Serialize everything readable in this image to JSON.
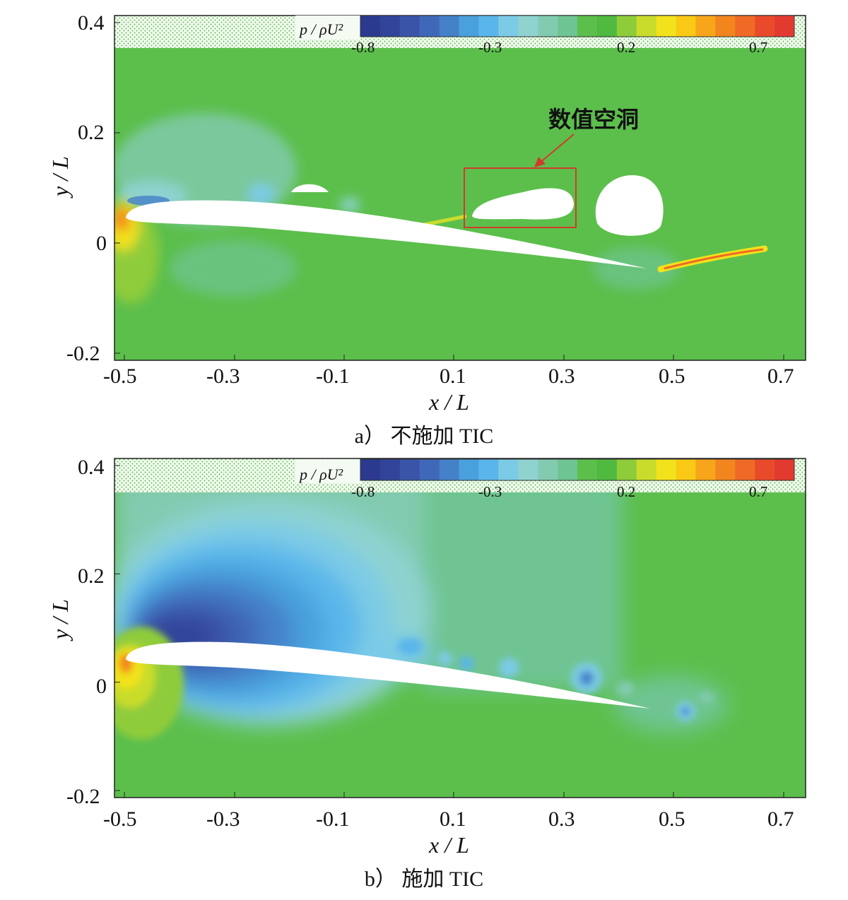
{
  "colors": {
    "background_green": "#5cbf4c",
    "body_white": "#ffffff",
    "colormap": [
      "#2b3a8f",
      "#32449a",
      "#3a55a8",
      "#3f68b8",
      "#4481c9",
      "#4aa0dc",
      "#5ab6ea",
      "#7ccbe6",
      "#8fd2d0",
      "#82cbb0",
      "#6fc493",
      "#5cbf4c",
      "#4fba3f",
      "#8fcc3a",
      "#c9dc2c",
      "#f2e21c",
      "#f9c915",
      "#f7a51a",
      "#f3851f",
      "#ef6a26",
      "#e94b2a",
      "#e33a30"
    ],
    "annotation_red": "#d13b2b"
  },
  "colorbar": {
    "title": "p / ρU²",
    "ticks": [
      "-0.8",
      "-0.3",
      "0.2",
      "0.7"
    ]
  },
  "axes": {
    "xlabel": "x / L",
    "ylabel": "y / L",
    "xticks": [
      "-0.5",
      "-0.3",
      "-0.1",
      "0.1",
      "0.3",
      "0.5",
      "0.7"
    ],
    "yticks": [
      "0.4",
      "0.2",
      "0",
      "-0.2"
    ]
  },
  "panels": [
    {
      "id": "a",
      "caption": "a）  不施加 TIC",
      "annotation": "数值空洞"
    },
    {
      "id": "b",
      "caption": "b）  施加 TIC",
      "annotation": ""
    }
  ]
}
